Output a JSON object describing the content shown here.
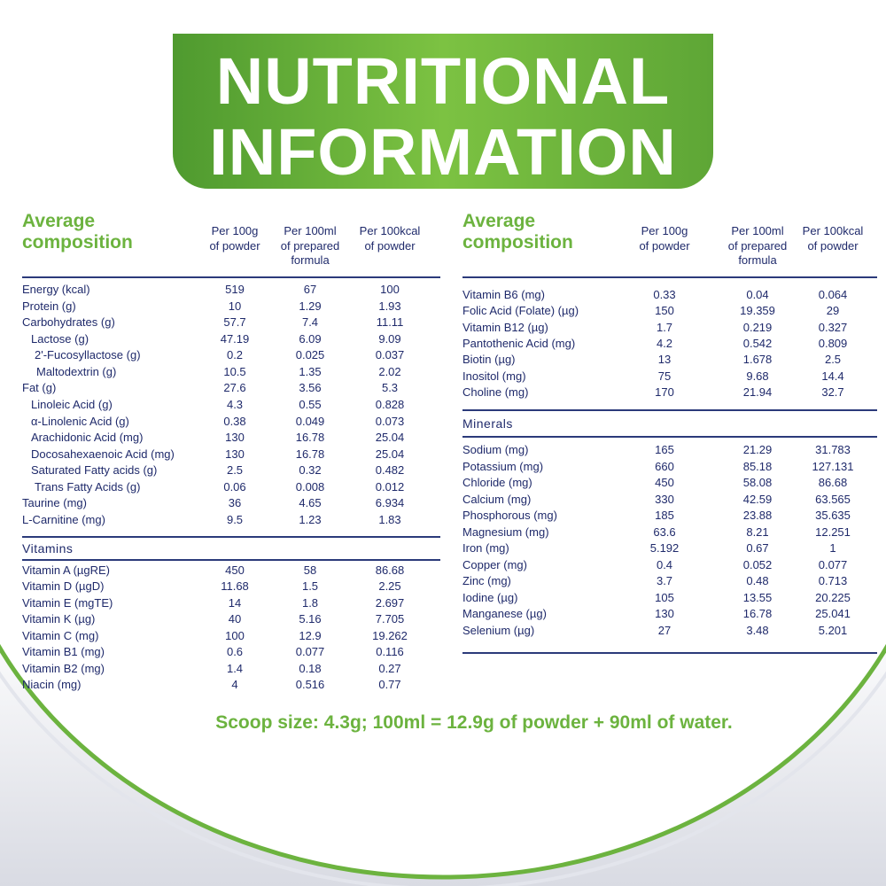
{
  "header": {
    "title_line1": "NUTRITIONAL",
    "title_line2": "INFORMATION"
  },
  "tables": [
    {
      "heading": [
        "Average",
        "composition"
      ],
      "columns": [
        [
          "Per 100g",
          "of powder"
        ],
        [
          "Per 100ml",
          "of prepared",
          "formula"
        ],
        [
          "Per 100kcal",
          "of powder"
        ]
      ],
      "sections": [
        {
          "rows": [
            [
              "Energy (kcal)",
              "519",
              "67",
              "100"
            ],
            [
              "Protein (g)",
              "10",
              "1.29",
              "1.93"
            ],
            [
              "Carbohydrates (g)",
              "57.7",
              "7.4",
              "11.11"
            ],
            [
              "Lactose (g)",
              "47.19",
              "6.09",
              "9.09"
            ],
            [
              "2'-Fucosyllactose (g)",
              "0.2",
              "0.025",
              "0.037"
            ],
            [
              "Maltodextrin (g)",
              "10.5",
              "1.35",
              "2.02"
            ],
            [
              "Fat (g)",
              "27.6",
              "3.56",
              "5.3"
            ],
            [
              "Linoleic Acid (g)",
              "4.3",
              "0.55",
              "0.828"
            ],
            [
              "α-Linolenic Acid (g)",
              "0.38",
              "0.049",
              "0.073"
            ],
            [
              "Arachidonic Acid (mg)",
              "130",
              "16.78",
              "25.04"
            ],
            [
              "Docosahexaenoic Acid (mg)",
              "130",
              "16.78",
              "25.04"
            ],
            [
              "Saturated Fatty acids (g)",
              "2.5",
              "0.32",
              "0.482"
            ],
            [
              "Trans Fatty Acids (g)",
              "0.06",
              "0.008",
              "0.012"
            ],
            [
              "Taurine (mg)",
              "36",
              "4.65",
              "6.934"
            ],
            [
              "L-Carnitine (mg)",
              "9.5",
              "1.23",
              "1.83"
            ]
          ]
        },
        {
          "title": "Vitamins",
          "rows": [
            [
              "Vitamin A (µgRE)",
              "450",
              "58",
              "86.68"
            ],
            [
              "Vitamin D (µgD)",
              "11.68",
              "1.5",
              "2.25"
            ],
            [
              "Vitamin E (mgTE)",
              "14",
              "1.8",
              "2.697"
            ],
            [
              "Vitamin K (µg)",
              "40",
              "5.16",
              "7.705"
            ],
            [
              "Vitamin C (mg)",
              "100",
              "12.9",
              "19.262"
            ],
            [
              "Vitamin B1 (mg)",
              "0.6",
              "0.077",
              "0.116"
            ],
            [
              "Vitamin B2 (mg)",
              "1.4",
              "0.18",
              "0.27"
            ],
            [
              "Niacin (mg)",
              "4",
              "0.516",
              "0.77"
            ]
          ]
        }
      ]
    },
    {
      "heading": [
        "Average",
        "composition"
      ],
      "columns": [
        [
          "Per 100g",
          "of powder"
        ],
        [
          "Per 100ml",
          "of prepared",
          "formula"
        ],
        [
          "Per 100kcal",
          "of powder"
        ]
      ],
      "sections": [
        {
          "rows": [
            [
              "Vitamin B6 (mg)",
              "0.33",
              "0.04",
              "0.064"
            ],
            [
              "Folic Acid (Folate) (µg)",
              "150",
              "19.359",
              "29"
            ],
            [
              "Vitamin B12 (µg)",
              "1.7",
              "0.219",
              "0.327"
            ],
            [
              "Pantothenic Acid (mg)",
              "4.2",
              "0.542",
              "0.809"
            ],
            [
              "Biotin (µg)",
              "13",
              "1.678",
              "2.5"
            ],
            [
              "Inositol (mg)",
              "75",
              "9.68",
              "14.4"
            ],
            [
              "Choline (mg)",
              "170",
              "21.94",
              "32.7"
            ]
          ]
        },
        {
          "title": "Minerals",
          "rows": [
            [
              "Sodium (mg)",
              "165",
              "21.29",
              "31.783"
            ],
            [
              "Potassium (mg)",
              "660",
              "85.18",
              "127.131"
            ],
            [
              "Chloride (mg)",
              "450",
              "58.08",
              "86.68"
            ],
            [
              "Calcium (mg)",
              "330",
              "42.59",
              "63.565"
            ],
            [
              "Phosphorous (mg)",
              "185",
              "23.88",
              "35.635"
            ],
            [
              "Magnesium (mg)",
              "63.6",
              "8.21",
              "12.251"
            ],
            [
              "Iron (mg)",
              "5.192",
              "0.67",
              "1"
            ],
            [
              "Copper (mg)",
              "0.4",
              "0.052",
              "0.077"
            ],
            [
              "Zinc (mg)",
              "3.7",
              "0.48",
              "0.713"
            ],
            [
              "Iodine (µg)",
              "105",
              "13.55",
              "20.225"
            ],
            [
              "Manganese (µg)",
              "130",
              "16.78",
              "25.041"
            ],
            [
              "Selenium (µg)",
              "27",
              "3.48",
              "5.201"
            ]
          ]
        }
      ]
    }
  ],
  "footer": {
    "note": "Scoop size: 4.3g; 100ml = 12.9g of powder + 90ml of water."
  }
}
